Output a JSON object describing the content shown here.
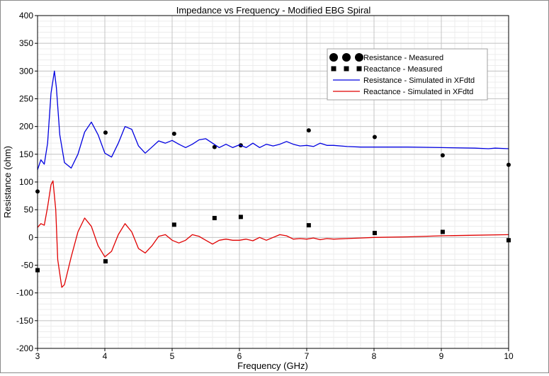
{
  "chart_data": {
    "type": "line",
    "title": "Impedance vs Frequency - Modified EBG Spiral",
    "xlabel": "Frequency (GHz)",
    "ylabel": "Resistance (ohm)",
    "xlim": [
      3,
      10
    ],
    "ylim": [
      -200,
      400
    ],
    "xticks": [
      3,
      4,
      5,
      6,
      7,
      8,
      9,
      10
    ],
    "yticks": [
      -200,
      -150,
      -100,
      -50,
      0,
      50,
      100,
      150,
      200,
      250,
      300,
      350,
      400
    ],
    "grid": true,
    "minor_grid": true,
    "legend_position": "top-right",
    "series": [
      {
        "name": "Resistance - Measured",
        "kind": "scatter",
        "marker": "circle",
        "color": "#000000",
        "x": [
          3.0,
          4.01,
          5.03,
          5.63,
          6.02,
          7.03,
          8.01,
          9.02,
          10.0
        ],
        "y": [
          83,
          189,
          187,
          163,
          166,
          193,
          181,
          148,
          131
        ]
      },
      {
        "name": "Reactance - Measured",
        "kind": "scatter",
        "marker": "square",
        "color": "#000000",
        "x": [
          3.0,
          4.01,
          5.03,
          5.63,
          6.02,
          7.03,
          8.01,
          9.02,
          10.0
        ],
        "y": [
          -59,
          -43,
          23,
          35,
          37,
          22,
          8,
          10,
          -5
        ]
      },
      {
        "name": "Resistance - Simulated in XFdtd",
        "kind": "line",
        "color": "#0000e0",
        "x": [
          3.0,
          3.05,
          3.1,
          3.15,
          3.2,
          3.25,
          3.28,
          3.33,
          3.4,
          3.5,
          3.6,
          3.7,
          3.8,
          3.9,
          4.0,
          4.1,
          4.2,
          4.3,
          4.4,
          4.5,
          4.6,
          4.7,
          4.8,
          4.9,
          5.0,
          5.1,
          5.2,
          5.3,
          5.4,
          5.5,
          5.6,
          5.7,
          5.8,
          5.9,
          6.0,
          6.1,
          6.2,
          6.3,
          6.4,
          6.5,
          6.6,
          6.7,
          6.8,
          6.9,
          7.0,
          7.1,
          7.2,
          7.3,
          7.4,
          7.6,
          7.8,
          8.0,
          8.5,
          9.0,
          9.5,
          9.7,
          9.8,
          10.0
        ],
        "y": [
          122,
          140,
          132,
          170,
          260,
          300,
          270,
          185,
          135,
          125,
          150,
          190,
          208,
          185,
          152,
          145,
          170,
          200,
          195,
          165,
          152,
          163,
          174,
          170,
          175,
          168,
          162,
          168,
          176,
          178,
          170,
          162,
          168,
          162,
          167,
          162,
          170,
          162,
          168,
          165,
          168,
          173,
          168,
          165,
          166,
          164,
          170,
          166,
          166,
          164,
          163,
          163,
          163,
          162,
          161,
          160,
          161,
          160
        ]
      },
      {
        "name": "Reactance - Simulated in XFdtd",
        "kind": "line",
        "color": "#e00000",
        "x": [
          3.0,
          3.05,
          3.1,
          3.15,
          3.2,
          3.23,
          3.27,
          3.3,
          3.36,
          3.4,
          3.5,
          3.6,
          3.7,
          3.8,
          3.9,
          4.0,
          4.1,
          4.2,
          4.3,
          4.4,
          4.5,
          4.6,
          4.7,
          4.8,
          4.9,
          5.0,
          5.1,
          5.2,
          5.3,
          5.4,
          5.5,
          5.6,
          5.7,
          5.8,
          5.9,
          6.0,
          6.1,
          6.2,
          6.3,
          6.4,
          6.5,
          6.6,
          6.7,
          6.8,
          6.9,
          7.0,
          7.1,
          7.2,
          7.3,
          7.4,
          7.6,
          7.8,
          8.0,
          8.5,
          9.0,
          9.5,
          10.0
        ],
        "y": [
          18,
          25,
          22,
          55,
          95,
          102,
          50,
          -40,
          -90,
          -85,
          -35,
          10,
          35,
          20,
          -15,
          -35,
          -25,
          5,
          25,
          10,
          -20,
          -28,
          -15,
          2,
          5,
          -5,
          -10,
          -5,
          5,
          2,
          -5,
          -12,
          -5,
          -3,
          -5,
          -5,
          -3,
          -6,
          0,
          -5,
          0,
          5,
          3,
          -3,
          -2,
          -3,
          -1,
          -4,
          -2,
          -3,
          -2,
          -1,
          0,
          1,
          3,
          4,
          5
        ]
      }
    ]
  }
}
